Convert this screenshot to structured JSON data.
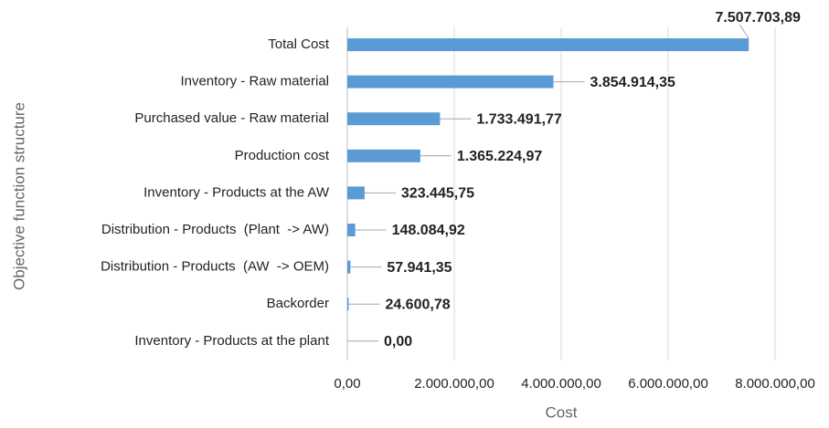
{
  "chart_data": {
    "type": "bar",
    "orientation": "horizontal",
    "x_label": "Cost",
    "y_label": "Objective function structure",
    "color": "#5b9bd5",
    "categories": [
      "Total Cost",
      "Inventory - Raw material",
      "Purchased value - Raw material",
      "Production cost",
      "Inventory - Products at the AW",
      "Distribution - Products  (Plant  -> AW)",
      "Distribution - Products  (AW  -> OEM)",
      "Backorder",
      "Inventory - Products at the plant"
    ],
    "values": [
      7507703.89,
      3854914.35,
      1733491.77,
      1365224.97,
      323445.75,
      148084.92,
      57941.35,
      24600.78,
      0
    ],
    "value_labels": [
      "7.507.703,89",
      "3.854.914,35",
      "1.733.491,77",
      "1.365.224,97",
      "323.445,75",
      "148.084,92",
      "57.941,35",
      "24.600,78",
      "0,00"
    ],
    "xlim": [
      0,
      8000000
    ],
    "xticks": [
      {
        "value": 0,
        "label": "0,00"
      },
      {
        "value": 2000000,
        "label": "2.000.000,00"
      },
      {
        "value": 4000000,
        "label": "4.000.000,00"
      },
      {
        "value": 6000000,
        "label": "6.000.000,00"
      },
      {
        "value": 8000000,
        "label": "8.000.000,00"
      }
    ],
    "grid": true
  }
}
